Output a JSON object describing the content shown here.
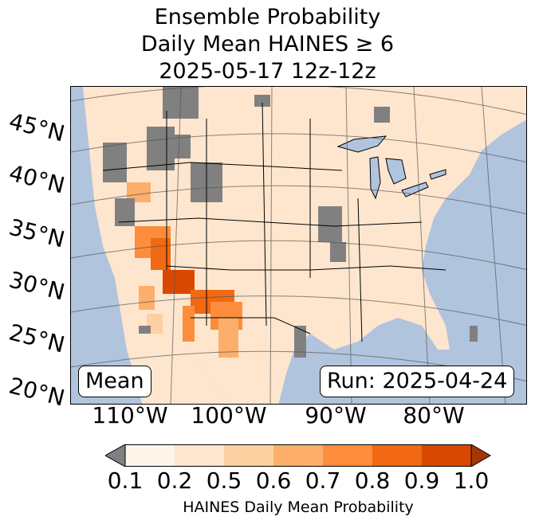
{
  "title": {
    "line1": "Ensemble Probability",
    "line2": "Daily Mean HAINES ≥ 6",
    "line3": "2025-05-17 12z-12z"
  },
  "map": {
    "lat_labels": [
      "45°N",
      "40°N",
      "35°N",
      "30°N",
      "25°N",
      "20°N"
    ],
    "lon_labels": [
      "110°W",
      "100°W",
      "90°W",
      "80°W"
    ],
    "stat_box": "Mean",
    "run_box": "Run: 2025-04-24",
    "colors": {
      "ocean": "#b0c4de",
      "missing_gray": "#808080",
      "land_low": "#fff5eb"
    }
  },
  "colorbar": {
    "ticks": [
      "0.1",
      "0.2",
      "0.5",
      "0.6",
      "0.7",
      "0.8",
      "0.9",
      "1.0"
    ],
    "colors": [
      "#fff5eb",
      "#fee6ce",
      "#fdd0a2",
      "#fdae6b",
      "#fd8d3c",
      "#f16913",
      "#d94801",
      "#a63603"
    ],
    "under_color": "#808080",
    "label": "HAINES Daily Mean Probability"
  }
}
